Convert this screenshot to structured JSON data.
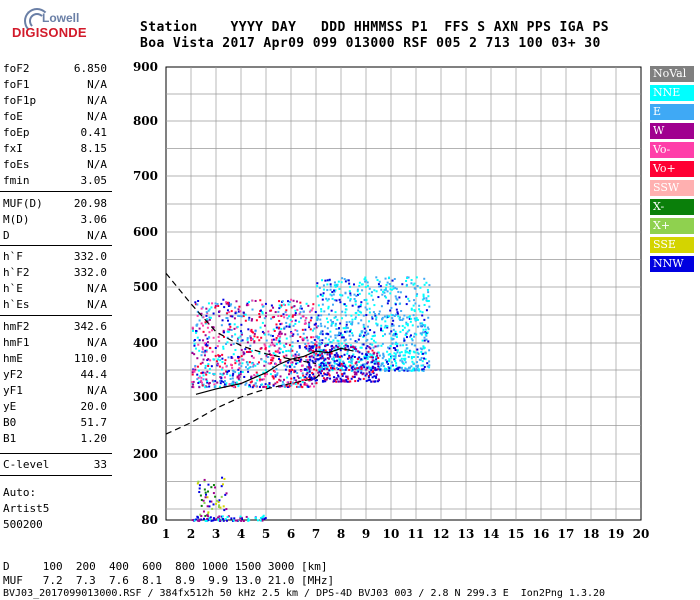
{
  "logo": {
    "top": "Lowell",
    "bottom": "DIGISONDE"
  },
  "header": {
    "line1": "Station    YYYY DAY   DDD HHMMSS P1  FFS S AXN PPS IGA PS",
    "line2": "Boa Vista 2017 Apr09 099 013000 RSF 005 2 713 100 03+ 30"
  },
  "params": [
    {
      "k": "foF2",
      "v": "6.850"
    },
    {
      "k": "foF1",
      "v": "N/A"
    },
    {
      "k": "foF1p",
      "v": "N/A"
    },
    {
      "k": "foE",
      "v": "N/A"
    },
    {
      "k": "foEp",
      "v": "0.41"
    },
    {
      "k": "fxI",
      "v": "8.15"
    },
    {
      "k": "foEs",
      "v": "N/A"
    },
    {
      "k": "fmin",
      "v": "3.05"
    },
    {
      "k": "MUF(D)",
      "v": "20.98"
    },
    {
      "k": "M(D)",
      "v": "3.06"
    },
    {
      "k": "D",
      "v": "N/A"
    },
    {
      "k": "h`F",
      "v": "332.0"
    },
    {
      "k": "h`F2",
      "v": "332.0"
    },
    {
      "k": "h`E",
      "v": "N/A"
    },
    {
      "k": "h`Es",
      "v": "N/A"
    },
    {
      "k": "hmF2",
      "v": "342.6"
    },
    {
      "k": "hmF1",
      "v": "N/A"
    },
    {
      "k": "hmE",
      "v": "110.0"
    },
    {
      "k": "yF2",
      "v": "44.4"
    },
    {
      "k": "yF1",
      "v": "N/A"
    },
    {
      "k": "yE",
      "v": "20.0"
    },
    {
      "k": "B0",
      "v": "51.7"
    },
    {
      "k": "B1",
      "v": "1.20"
    },
    {
      "k": "C-level",
      "v": "33"
    }
  ],
  "auto": {
    "l1": "Auto:",
    "l2": "Artist5",
    "l3": "500200"
  },
  "legend": [
    {
      "label": "NoVal",
      "color": "#7f7f7f"
    },
    {
      "label": "NNE",
      "color": "#00ffff"
    },
    {
      "label": "E",
      "color": "#3fa9f5"
    },
    {
      "label": "W",
      "color": "#a0008f"
    },
    {
      "label": "Vo-",
      "color": "#ff3fa9"
    },
    {
      "label": "Vo+",
      "color": "#ff0033"
    },
    {
      "label": "SSW",
      "color": "#ffb0b0"
    },
    {
      "label": "X-",
      "color": "#0a7f0a"
    },
    {
      "label": "X+",
      "color": "#8fd14f"
    },
    {
      "label": "SSE",
      "color": "#d4d400"
    },
    {
      "label": "NNW",
      "color": "#0000e0"
    }
  ],
  "footer": {
    "l1": "D     100  200  400  600  800 1000 1500 3000 [km]",
    "l2": "MUF   7.2  7.3  7.6  8.1  8.9  9.9 13.0 21.0 [MHz]",
    "l3": "BVJ03_2017099013000.RSF / 384fx512h 50 kHz 2.5 km / DPS-4D BVJ03 003 / 2.8 N 299.3 E  Ion2Png 1.3.20"
  },
  "chart_data": {
    "type": "scatter",
    "x_ticks": [
      "1",
      "2",
      "3",
      "4",
      "5",
      "6",
      "7",
      "8",
      "9",
      "10",
      "11",
      "12",
      "13",
      "14",
      "15",
      "16",
      "17",
      "18",
      "19",
      "20"
    ],
    "y_ticks": [
      "80",
      "200",
      "300",
      "400",
      "500",
      "600",
      "700",
      "800",
      "900"
    ],
    "xlim": [
      1,
      20
    ],
    "ylim": [
      80,
      900
    ],
    "profile_solid": [
      [
        2.2,
        305
      ],
      [
        3,
        315
      ],
      [
        4,
        325
      ],
      [
        5,
        345
      ],
      [
        5.5,
        360
      ],
      [
        6,
        370
      ],
      [
        6.5,
        375
      ],
      [
        7,
        385
      ],
      [
        7.5,
        382
      ],
      [
        8,
        390
      ],
      [
        8.5,
        385
      ]
    ],
    "profile_dashed_upper": [
      [
        1,
        525
      ],
      [
        2,
        470
      ],
      [
        3,
        420
      ],
      [
        4,
        395
      ],
      [
        5,
        380
      ],
      [
        6,
        370
      ],
      [
        7,
        362
      ]
    ],
    "profile_dashed_lower": [
      [
        1,
        235
      ],
      [
        2,
        255
      ],
      [
        3,
        280
      ],
      [
        4,
        300
      ],
      [
        5,
        315
      ],
      [
        6,
        325
      ],
      [
        7,
        335
      ],
      [
        7.2,
        345
      ]
    ]
  }
}
